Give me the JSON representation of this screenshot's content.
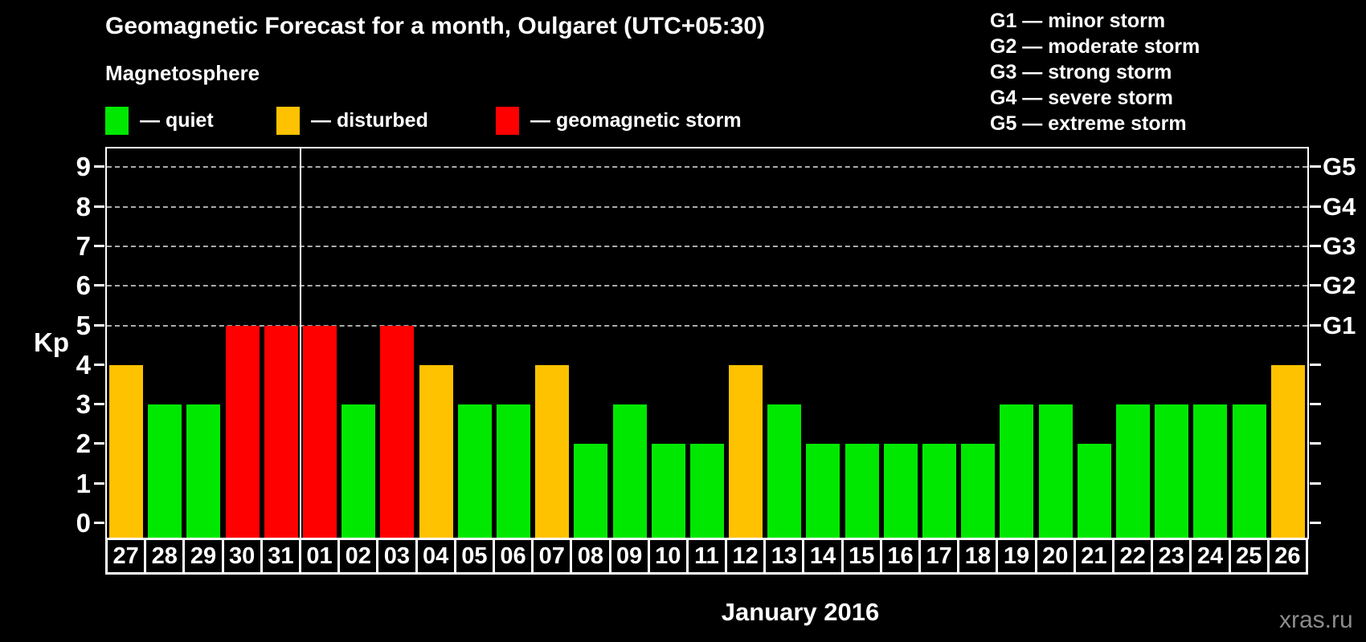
{
  "header": {
    "title": "Geomagnetic Forecast for a month, Oulgaret (UTC+05:30)",
    "subtitle": "Magnetosphere"
  },
  "legend": {
    "items": [
      {
        "label": "— quiet",
        "status": "quiet",
        "color": "#00E800"
      },
      {
        "label": "— disturbed",
        "status": "disturbed",
        "color": "#FFC200"
      },
      {
        "label": "— geomagnetic storm",
        "status": "storm",
        "color": "#FF0000"
      }
    ]
  },
  "storm_scale": [
    {
      "code": "G1",
      "label": "G1 — minor storm"
    },
    {
      "code": "G2",
      "label": "G2 — moderate storm"
    },
    {
      "code": "G3",
      "label": "G3 — strong storm"
    },
    {
      "code": "G4",
      "label": "G4 — severe storm"
    },
    {
      "code": "G5",
      "label": "G5 — extreme storm"
    }
  ],
  "chart_data": {
    "type": "bar",
    "title": "Geomagnetic Forecast for a month, Oulgaret (UTC+05:30)",
    "subtitle": "Magnetosphere",
    "categories": [
      "27",
      "28",
      "29",
      "30",
      "31",
      "01",
      "02",
      "03",
      "04",
      "05",
      "06",
      "07",
      "08",
      "09",
      "10",
      "11",
      "12",
      "13",
      "14",
      "15",
      "16",
      "17",
      "18",
      "19",
      "20",
      "21",
      "22",
      "23",
      "24",
      "25",
      "26"
    ],
    "values": [
      4,
      3,
      3,
      5,
      5,
      5,
      3,
      5,
      4,
      3,
      3,
      4,
      2,
      3,
      2,
      2,
      4,
      3,
      2,
      2,
      2,
      2,
      2,
      3,
      3,
      2,
      3,
      3,
      3,
      3,
      4
    ],
    "statuses": [
      "disturbed",
      "quiet",
      "quiet",
      "storm",
      "storm",
      "storm",
      "quiet",
      "storm",
      "disturbed",
      "quiet",
      "quiet",
      "disturbed",
      "quiet",
      "quiet",
      "quiet",
      "quiet",
      "disturbed",
      "quiet",
      "quiet",
      "quiet",
      "quiet",
      "quiet",
      "quiet",
      "quiet",
      "quiet",
      "quiet",
      "quiet",
      "quiet",
      "quiet",
      "quiet",
      "disturbed"
    ],
    "colors": {
      "quiet": "#00E800",
      "disturbed": "#FFC200",
      "storm": "#FF0000"
    },
    "ylabel": "Kp",
    "xlabel": "January 2016",
    "ylim": [
      0,
      9
    ],
    "yticks": [
      0,
      1,
      2,
      3,
      4,
      5,
      6,
      7,
      8,
      9
    ],
    "gridlines_at": [
      5,
      6,
      7,
      8,
      9
    ],
    "right_axis": [
      {
        "kp": 5,
        "label": "G1"
      },
      {
        "kp": 6,
        "label": "G2"
      },
      {
        "kp": 7,
        "label": "G3"
      },
      {
        "kp": 8,
        "label": "G4"
      },
      {
        "kp": 9,
        "label": "G5"
      }
    ],
    "month_boundary_after_index": 4,
    "grid": "horizontal dashed at storm levels",
    "legend_position": "top-left"
  },
  "footer": {
    "watermark": "xras.ru"
  }
}
